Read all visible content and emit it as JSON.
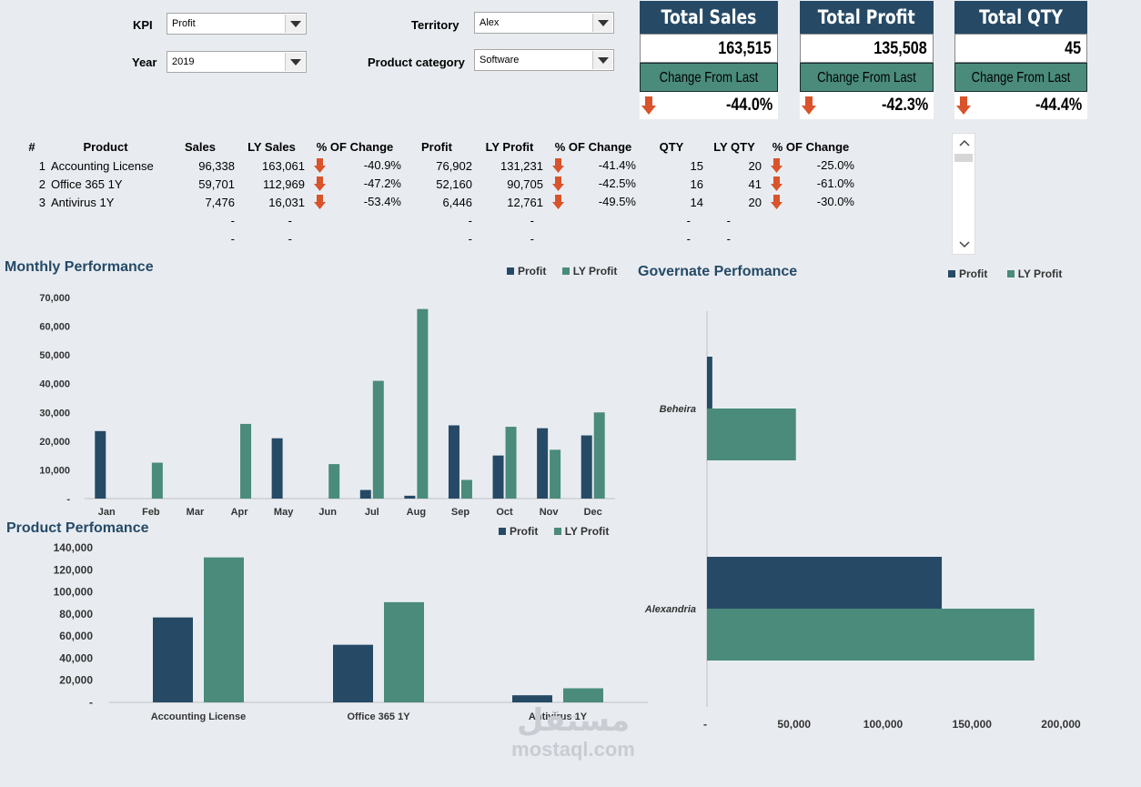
{
  "filters": {
    "kpi": {
      "label": "KPI",
      "value": "Profit"
    },
    "year": {
      "label": "Year",
      "value": "2019"
    },
    "territory": {
      "label": "Territory",
      "value": "Alex"
    },
    "category": {
      "label": "Product category",
      "value": "Software"
    }
  },
  "kpis": [
    {
      "title": "Total Sales",
      "value": "163,515",
      "change_label": "Change From Last Year",
      "change": "-44.0%"
    },
    {
      "title": "Total Profit",
      "value": "135,508",
      "change_label": "Change From Last Year",
      "change": "-42.3%"
    },
    {
      "title": "Total QTY",
      "value": "45",
      "change_label": "Change From Last Year",
      "change": "-44.4%"
    }
  ],
  "table": {
    "headers": [
      "#",
      "Product",
      "Sales",
      "LY Sales",
      "% OF Change",
      "Profit",
      "LY Profit",
      "% OF Change",
      "QTY",
      "LY QTY",
      "% OF Change"
    ],
    "rows": [
      {
        "n": "1",
        "product": "Accounting License",
        "sales": "96,338",
        "ly_sales": "163,061",
        "pct1": "-40.9%",
        "profit": "76,902",
        "ly_profit": "131,231",
        "pct2": "-41.4%",
        "qty": "15",
        "ly_qty": "20",
        "pct3": "-25.0%"
      },
      {
        "n": "2",
        "product": "Office 365 1Y",
        "sales": "59,701",
        "ly_sales": "112,969",
        "pct1": "-47.2%",
        "profit": "52,160",
        "ly_profit": "90,705",
        "pct2": "-42.5%",
        "qty": "16",
        "ly_qty": "41",
        "pct3": "-61.0%"
      },
      {
        "n": "3",
        "product": "Antivirus 1Y",
        "sales": "7,476",
        "ly_sales": "16,031",
        "pct1": "-53.4%",
        "profit": "6,446",
        "ly_profit": "12,761",
        "pct2": "-49.5%",
        "qty": "14",
        "ly_qty": "20",
        "pct3": "-30.0%"
      }
    ],
    "blank_rows": [
      {
        "sales": "-",
        "ly_sales": "-",
        "profit": "-",
        "ly_profit": "-",
        "qty": "-",
        "ly_qty": "-"
      },
      {
        "sales": "-",
        "ly_sales": "-",
        "profit": "-",
        "ly_profit": "-",
        "qty": "-",
        "ly_qty": "-"
      }
    ]
  },
  "colors": {
    "profit": "#264a66",
    "ly_profit": "#4a8b7b",
    "down_arrow": "#d9532b"
  },
  "chart_data": [
    {
      "type": "bar",
      "title": "Monthly Performance",
      "categories": [
        "Jan",
        "Feb",
        "Mar",
        "Apr",
        "May",
        "Jun",
        "Jul",
        "Aug",
        "Sep",
        "Oct",
        "Nov",
        "Dec"
      ],
      "series": [
        {
          "name": "Profit",
          "values": [
            23500,
            0,
            0,
            0,
            21000,
            0,
            3000,
            1000,
            25500,
            15000,
            24500,
            22000
          ]
        },
        {
          "name": "LY Profit",
          "values": [
            0,
            12500,
            0,
            26000,
            0,
            12000,
            41000,
            66000,
            6500,
            25000,
            17000,
            30000
          ]
        }
      ],
      "yticks": [
        "-",
        "10,000",
        "20,000",
        "30,000",
        "40,000",
        "50,000",
        "60,000",
        "70,000"
      ],
      "ylim": [
        0,
        70000
      ]
    },
    {
      "type": "bar",
      "title": "Product Perfomance",
      "categories": [
        "Accounting License",
        "Office 365 1Y",
        "Antivirus 1Y"
      ],
      "series": [
        {
          "name": "Profit",
          "values": [
            76902,
            52160,
            6446
          ]
        },
        {
          "name": "LY Profit",
          "values": [
            131231,
            90705,
            12761
          ]
        }
      ],
      "yticks": [
        "-",
        "20,000",
        "40,000",
        "60,000",
        "80,000",
        "100,000",
        "120,000",
        "140,000"
      ],
      "ylim": [
        0,
        140000
      ]
    },
    {
      "type": "bar",
      "orientation": "horizontal",
      "title": "Governate Perfomance",
      "categories": [
        "Beheira",
        "Alexandria"
      ],
      "series": [
        {
          "name": "Profit",
          "values": [
            3000,
            132000
          ]
        },
        {
          "name": "LY Profit",
          "values": [
            50000,
            184000
          ]
        }
      ],
      "xticks": [
        "-",
        "50,000",
        "100,000",
        "150,000",
        "200,000"
      ],
      "xlim": [
        0,
        200000
      ]
    }
  ],
  "watermark": {
    "arabic": "مستقل",
    "latin": "mostaql.com"
  }
}
